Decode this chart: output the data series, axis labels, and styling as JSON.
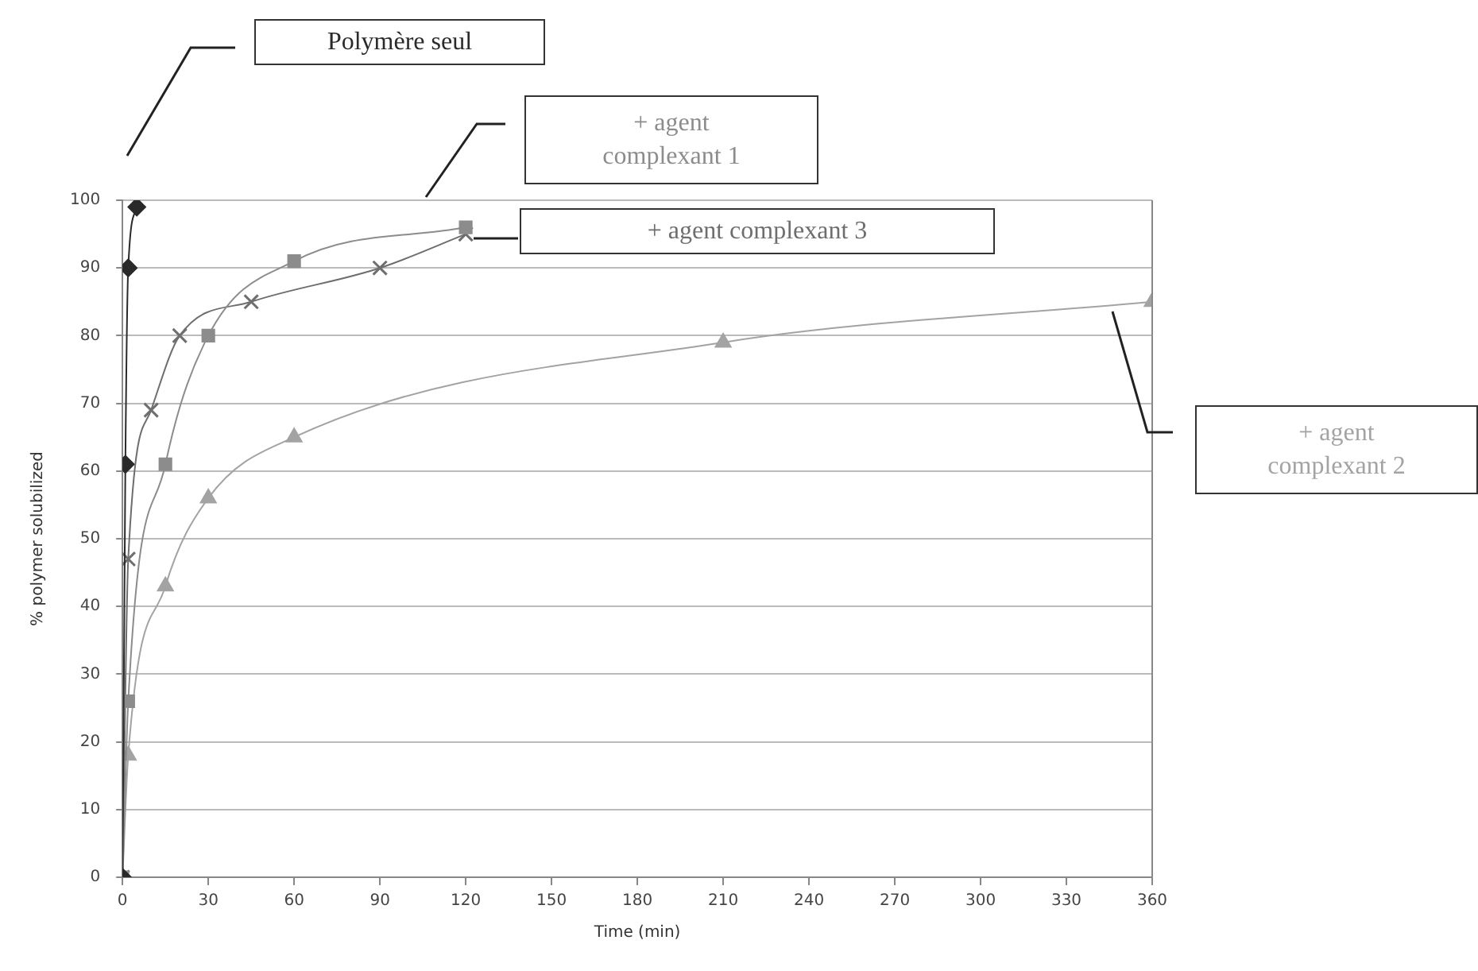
{
  "chart_data": {
    "type": "line",
    "xlabel": "Time (min)",
    "ylabel": "% polymer solubilized",
    "xlim": [
      0,
      360
    ],
    "ylim": [
      0,
      100
    ],
    "xticks": [
      0,
      30,
      60,
      90,
      120,
      150,
      180,
      210,
      240,
      270,
      300,
      330,
      360
    ],
    "yticks": [
      0,
      10,
      20,
      30,
      40,
      50,
      60,
      70,
      80,
      90,
      100
    ],
    "grid": "y",
    "series": [
      {
        "name": "Polymère seul",
        "color": "#2a2a2a",
        "marker": "diamond",
        "x": [
          0,
          1,
          2,
          5
        ],
        "values": [
          0,
          61,
          90,
          99
        ]
      },
      {
        "name": "+ agent complexant 1",
        "color": "#8c8c8c",
        "marker": "square",
        "x": [
          0,
          2,
          15,
          30,
          60,
          120
        ],
        "values": [
          0,
          26,
          61,
          80,
          91,
          96
        ]
      },
      {
        "name": "+ agent complexant 3",
        "color": "#6e6e6e",
        "marker": "cross",
        "x": [
          0,
          2,
          10,
          20,
          45,
          90,
          120
        ],
        "values": [
          0,
          47,
          69,
          80,
          85,
          90,
          95
        ]
      },
      {
        "name": "+ agent complexant 2",
        "color": "#a3a3a3",
        "marker": "triangle",
        "x": [
          0,
          2,
          15,
          30,
          60,
          210,
          360
        ],
        "values": [
          0,
          18,
          43,
          56,
          65,
          79,
          85
        ]
      }
    ]
  }
}
